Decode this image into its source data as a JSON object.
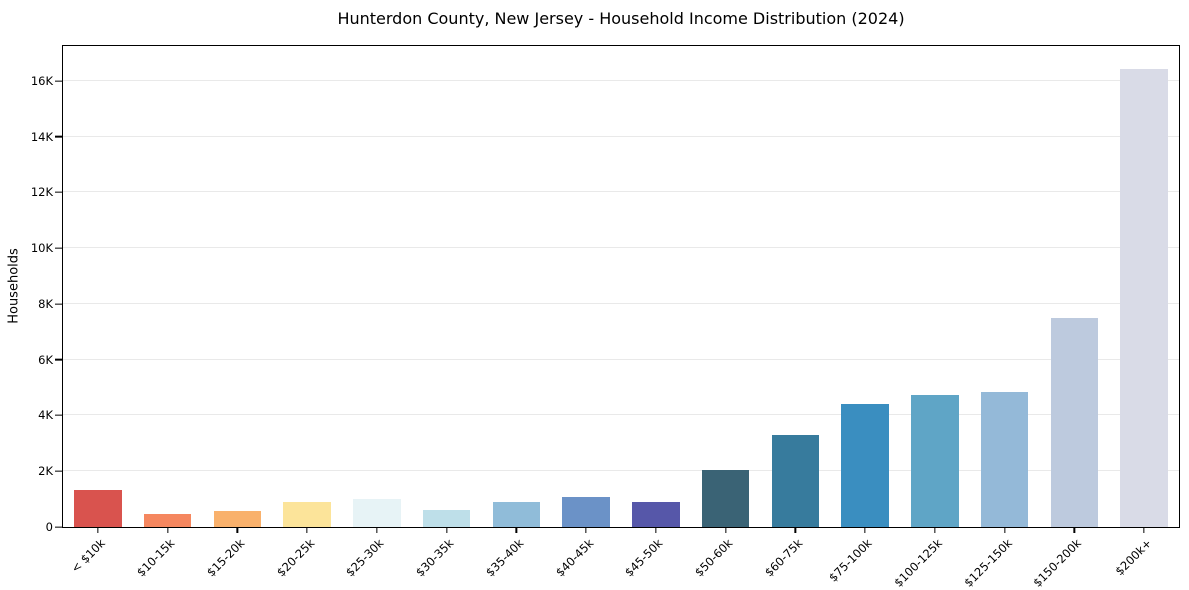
{
  "chart_data": {
    "type": "bar",
    "title": "Hunterdon County, New Jersey - Household Income Distribution (2024)",
    "xlabel": "",
    "ylabel": "Households",
    "categories": [
      "< $10k",
      "$10-15k",
      "$15-20k",
      "$20-25k",
      "$25-30k",
      "$30-35k",
      "$35-40k",
      "$40-45k",
      "$45-50k",
      "$50-60k",
      "$60-75k",
      "$75-100k",
      "$100-125k",
      "$125-150k",
      "$150-200k",
      "$200k+"
    ],
    "values": [
      1330,
      480,
      570,
      900,
      1010,
      600,
      880,
      1060,
      890,
      2030,
      3310,
      4420,
      4740,
      4840,
      7500,
      16430
    ],
    "bar_colors": [
      "#d9534e",
      "#f5875f",
      "#f9b16c",
      "#fce49a",
      "#e7f3f6",
      "#bedfe9",
      "#90bcd9",
      "#6b92c7",
      "#5657a9",
      "#3a6375",
      "#377b9d",
      "#3a8ec0",
      "#5fa5c6",
      "#94b9d8",
      "#bdcade",
      "#d9dbe7"
    ],
    "ylim": [
      0,
      17250
    ],
    "yticks": {
      "values": [
        0,
        2000,
        4000,
        6000,
        8000,
        10000,
        12000,
        14000,
        16000
      ],
      "labels": [
        "0",
        "2K",
        "4K",
        "6K",
        "8K",
        "10K",
        "12K",
        "14K",
        "16K"
      ]
    },
    "grid": "horizontal gridlines at y ticks",
    "grid_color": "#e9e9e9",
    "legend": "none",
    "x_tick_rotation": 45
  }
}
